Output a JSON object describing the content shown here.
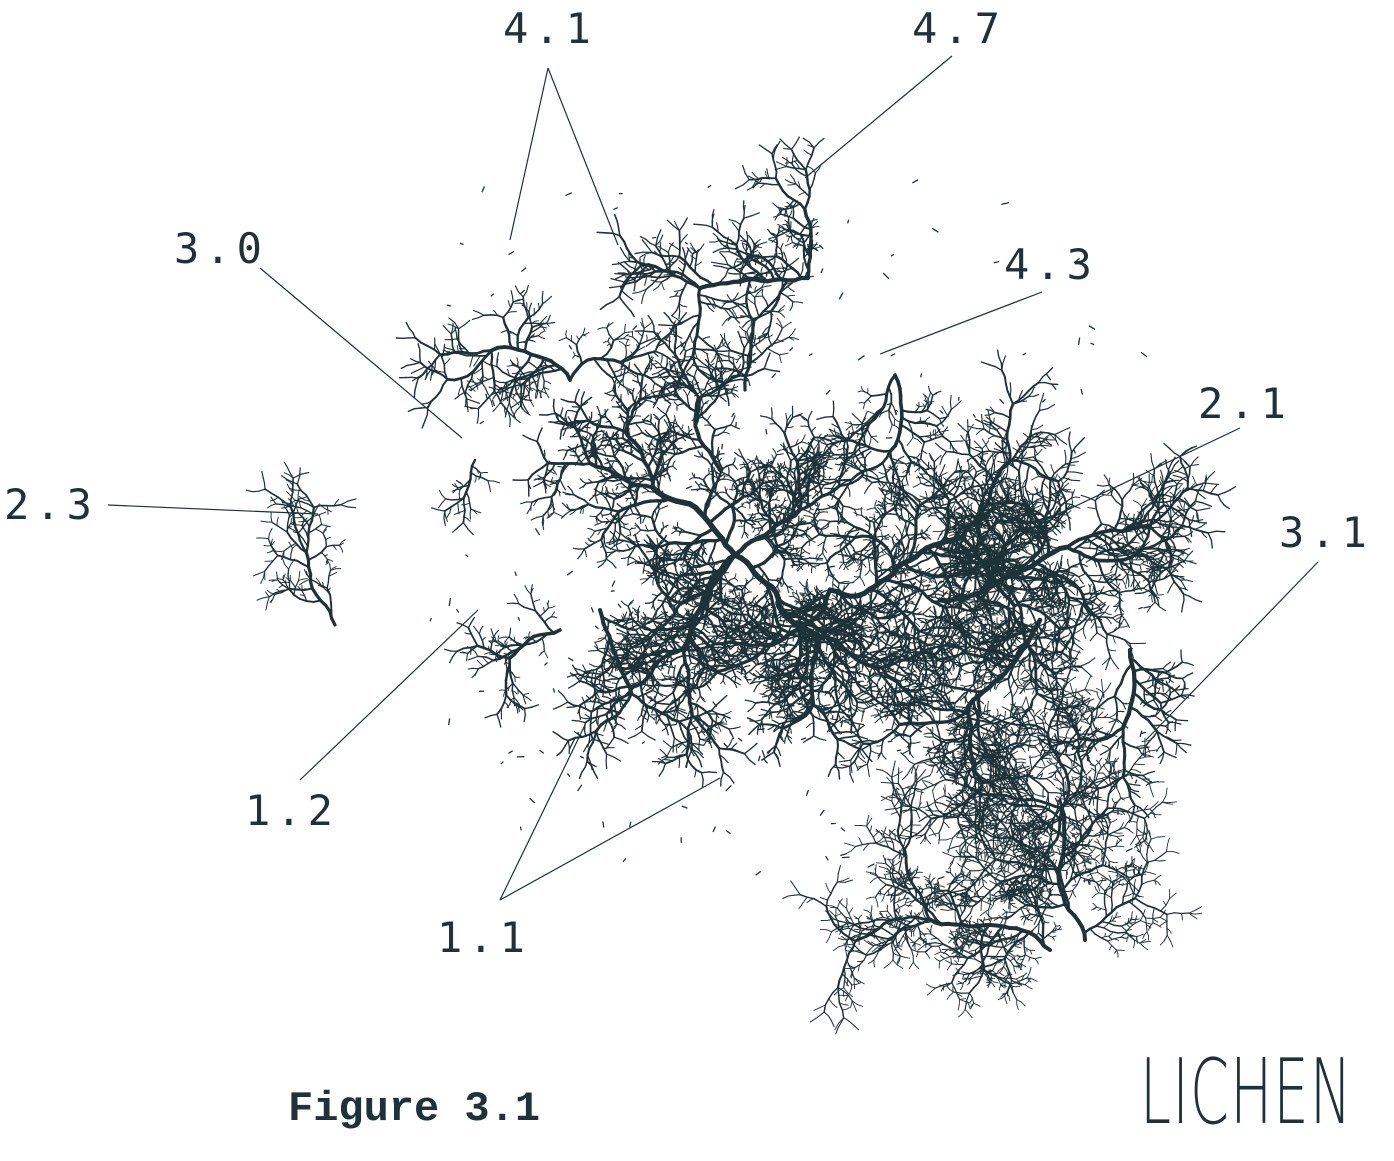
{
  "labels": {
    "l41": "4.1",
    "l47": "4.7",
    "l30": "3.0",
    "l43": "4.3",
    "l21": "2.1",
    "l23": "2.3",
    "l31": "3.1",
    "l12": "1.2",
    "l11": "1.1"
  },
  "caption": "Figure 3.1",
  "logo": "LICHEN",
  "colors": {
    "ink": "#1f3238",
    "background": "#ffffff"
  }
}
